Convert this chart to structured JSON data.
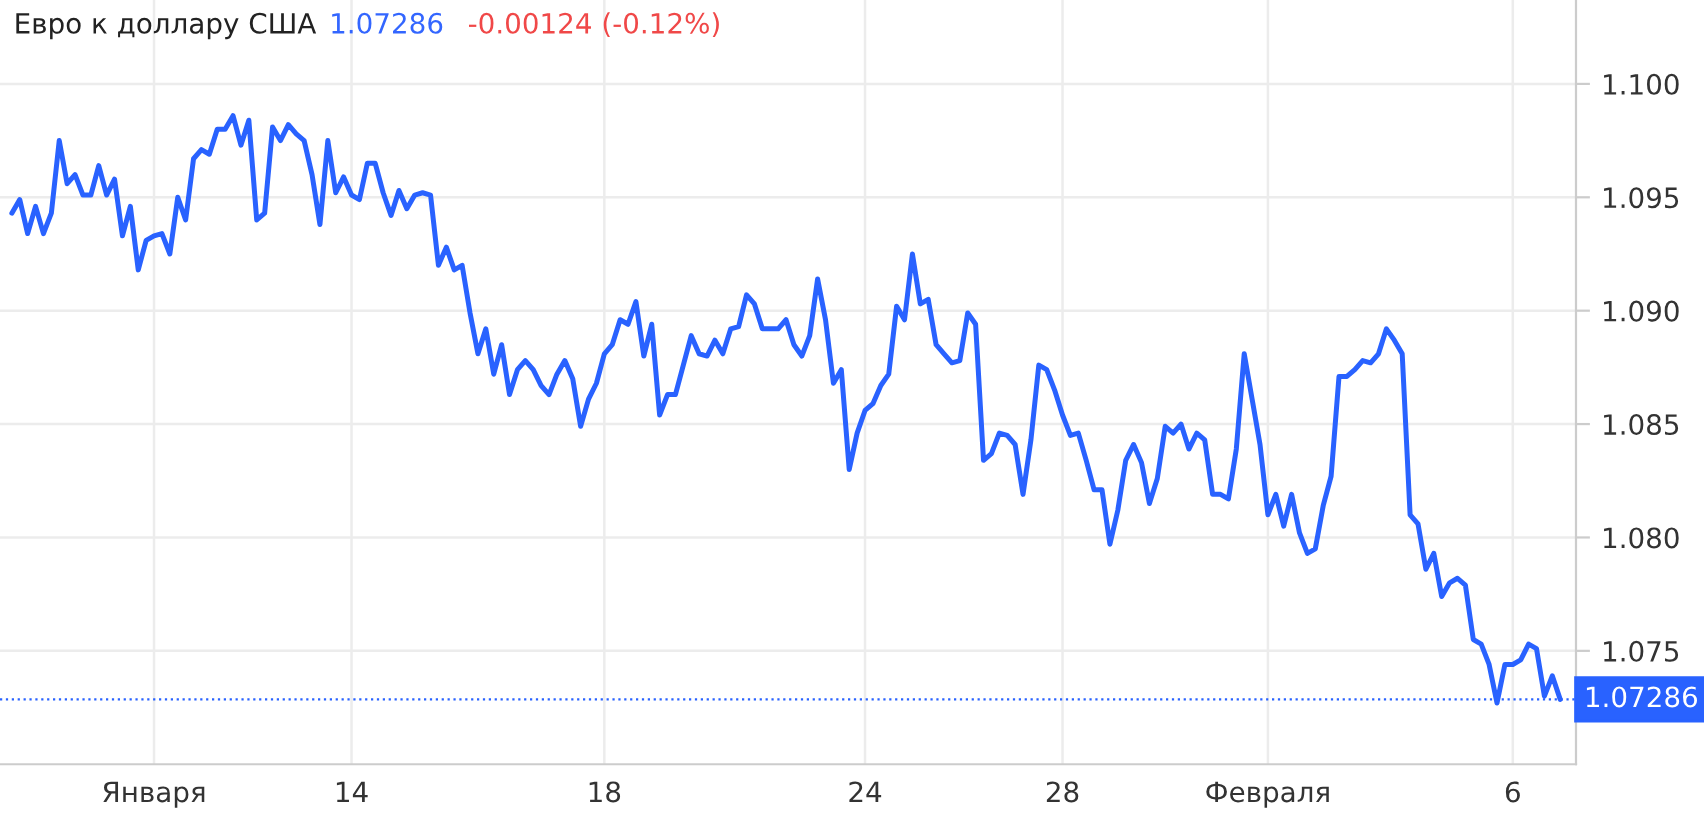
{
  "chart_data": {
    "type": "line",
    "title": "Евро к доллару США",
    "annotations": [
      "1.07286",
      "-0.00124 (-0.12%)"
    ],
    "categories": [
      null,
      null,
      null,
      null,
      null,
      null,
      null,
      null,
      null,
      null,
      null,
      null,
      null,
      null,
      null,
      null,
      null,
      null,
      "Января",
      null,
      null,
      null,
      null,
      null,
      null,
      null,
      null,
      null,
      null,
      null,
      null,
      null,
      null,
      null,
      null,
      null,
      null,
      null,
      null,
      null,
      null,
      null,
      null,
      "14",
      null,
      null,
      null,
      null,
      null,
      null,
      null,
      null,
      null,
      null,
      null,
      null,
      null,
      null,
      null,
      null,
      null,
      null,
      null,
      null,
      null,
      null,
      null,
      null,
      null,
      null,
      null,
      null,
      null,
      null,
      null,
      "18",
      null,
      null,
      null,
      null,
      null,
      null,
      null,
      null,
      null,
      null,
      null,
      null,
      null,
      null,
      null,
      null,
      null,
      null,
      null,
      null,
      null,
      null,
      null,
      null,
      null,
      null,
      null,
      null,
      null,
      null,
      null,
      null,
      "24",
      null,
      null,
      null,
      null,
      null,
      null,
      null,
      null,
      null,
      null,
      null,
      null,
      null,
      null,
      null,
      null,
      null,
      null,
      null,
      null,
      null,
      null,
      null,
      null,
      "28",
      null,
      null,
      null,
      null,
      null,
      null,
      null,
      null,
      null,
      null,
      null,
      null,
      null,
      null,
      null,
      null,
      null,
      null,
      null,
      null,
      null,
      null,
      null,
      null,
      null,
      "Февраля",
      null,
      null,
      null,
      null,
      null,
      null,
      null,
      null,
      null,
      null,
      null,
      null,
      null,
      null,
      null,
      null,
      null,
      null,
      null,
      null,
      null,
      null,
      null,
      null,
      null,
      null,
      null,
      null,
      null,
      null,
      "6",
      null,
      null,
      null,
      null,
      null,
      null
    ],
    "ylim": [
      1.07,
      1.1037
    ],
    "yticks": [
      {
        "value": 1.075,
        "label": "1.075"
      },
      {
        "value": 1.08,
        "label": "1.080"
      },
      {
        "value": 1.085,
        "label": "1.085"
      },
      {
        "value": 1.09,
        "label": "1.090"
      },
      {
        "value": 1.095,
        "label": "1.095"
      },
      {
        "value": 1.1,
        "label": "1.100"
      }
    ],
    "grid": true,
    "legend": false,
    "marker": "none",
    "line_style": "solid",
    "ref_lines": [
      {
        "axis": "y",
        "value": 1.07286,
        "label": "1.07286",
        "color": "#2962ff",
        "line_style": "dotted"
      }
    ],
    "series": [
      {
        "color": "#2962ff",
        "values": [
          1.0943,
          1.0949,
          1.0934,
          1.0946,
          1.0934,
          1.0943,
          1.0975,
          1.0956,
          1.096,
          1.0951,
          1.0951,
          1.0964,
          1.0951,
          1.0958,
          1.0933,
          1.0946,
          1.0918,
          1.0931,
          1.0933,
          1.0934,
          1.0925,
          1.095,
          1.094,
          1.0967,
          1.0971,
          1.0969,
          1.098,
          1.098,
          1.0986,
          1.0973,
          1.0984,
          1.094,
          1.0943,
          1.0981,
          1.0975,
          1.0982,
          1.0978,
          1.0975,
          1.096,
          1.0938,
          1.0975,
          1.0952,
          1.0959,
          1.0951,
          1.0949,
          1.0965,
          1.0965,
          1.0952,
          1.0942,
          1.0953,
          1.0945,
          1.0951,
          1.0952,
          1.0951,
          1.092,
          1.0928,
          1.0918,
          1.092,
          1.0899,
          1.0881,
          1.0892,
          1.0872,
          1.0885,
          1.0863,
          1.0874,
          1.0878,
          1.0874,
          1.0867,
          1.0863,
          1.0872,
          1.0878,
          1.087,
          1.0849,
          1.0861,
          1.0868,
          1.0881,
          1.0885,
          1.0896,
          1.0894,
          1.0904,
          1.088,
          1.0894,
          1.0854,
          1.0863,
          1.0863,
          1.0876,
          1.0889,
          1.0881,
          1.088,
          1.0887,
          1.0881,
          1.0892,
          1.0893,
          1.0907,
          1.0903,
          1.0892,
          1.0892,
          1.0892,
          1.0896,
          1.0885,
          1.088,
          1.0889,
          1.0914,
          1.0896,
          1.0868,
          1.0874,
          1.083,
          1.0846,
          1.0856,
          1.0859,
          1.0867,
          1.0872,
          1.0902,
          1.0896,
          1.0925,
          1.0903,
          1.0905,
          1.0885,
          1.0881,
          1.0877,
          1.0878,
          1.0899,
          1.0894,
          1.0834,
          1.0837,
          1.0846,
          1.0845,
          1.0841,
          1.0819,
          1.0843,
          1.0876,
          1.0874,
          1.0865,
          1.0854,
          1.0845,
          1.0846,
          1.0834,
          1.0821,
          1.0821,
          1.0797,
          1.0812,
          1.0834,
          1.0841,
          1.0833,
          1.0815,
          1.0826,
          1.0849,
          1.0846,
          1.085,
          1.0839,
          1.0846,
          1.0843,
          1.0819,
          1.0819,
          1.0817,
          1.0839,
          1.0881,
          1.0861,
          1.0841,
          1.081,
          1.0819,
          1.0805,
          1.0819,
          1.0802,
          1.0793,
          1.0795,
          1.0814,
          1.0827,
          1.0871,
          1.0871,
          1.0874,
          1.0878,
          1.0877,
          1.0881,
          1.0892,
          1.0887,
          1.0881,
          1.081,
          1.0806,
          1.0786,
          1.0793,
          1.0774,
          1.078,
          1.0782,
          1.0779,
          1.0755,
          1.0753,
          1.0744,
          1.0727,
          1.0744,
          1.0744,
          1.0746,
          1.0753,
          1.0751,
          1.073,
          1.0739,
          1.07286
        ]
      }
    ]
  }
}
